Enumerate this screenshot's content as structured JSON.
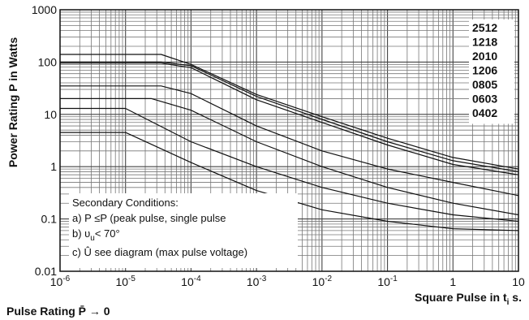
{
  "chart_data": {
    "type": "line",
    "title": "",
    "xlabel": "Square Pulse in t",
    "xlabel_sub": "i",
    "xlabel_suffix": " s.",
    "ylabel": "Power Rating P in Watts",
    "x_scale": "log",
    "y_scale": "log",
    "xlim": [
      1e-06,
      10
    ],
    "ylim": [
      0.01,
      1000
    ],
    "grid": true,
    "legend_position": "top-right",
    "x_tick_labels": [
      {
        "base": "10",
        "exp": "-6"
      },
      {
        "base": "10",
        "exp": "-5"
      },
      {
        "base": "10",
        "exp": "-4"
      },
      {
        "base": "10",
        "exp": "-3"
      },
      {
        "base": "10",
        "exp": "-2"
      },
      {
        "base": "10",
        "exp": "-1"
      },
      {
        "base": "1",
        "exp": ""
      },
      {
        "base": "10",
        "exp": ""
      }
    ],
    "y_tick_labels": [
      "1000",
      "100",
      "10",
      "1",
      "0.1",
      "0.01"
    ],
    "series": [
      {
        "name": "2512",
        "points": [
          [
            1e-06,
            140
          ],
          [
            3.5e-05,
            140
          ],
          [
            0.0001,
            90
          ],
          [
            0.001,
            24
          ],
          [
            0.01,
            9
          ],
          [
            0.1,
            3.5
          ],
          [
            1,
            1.5
          ],
          [
            10,
            0.9
          ]
        ]
      },
      {
        "name": "1218",
        "points": [
          [
            1e-06,
            100
          ],
          [
            3.5e-05,
            100
          ],
          [
            0.0001,
            85
          ],
          [
            0.001,
            22
          ],
          [
            0.01,
            8
          ],
          [
            0.1,
            3
          ],
          [
            1,
            1.3
          ],
          [
            10,
            0.8
          ]
        ]
      },
      {
        "name": "2010",
        "points": [
          [
            1e-06,
            95
          ],
          [
            3.5e-05,
            95
          ],
          [
            0.0001,
            78
          ],
          [
            0.001,
            19
          ],
          [
            0.01,
            7
          ],
          [
            0.1,
            2.6
          ],
          [
            1,
            1.1
          ],
          [
            10,
            0.7
          ]
        ]
      },
      {
        "name": "1206",
        "points": [
          [
            1e-06,
            35
          ],
          [
            3.5e-05,
            35
          ],
          [
            0.0001,
            25
          ],
          [
            0.001,
            6
          ],
          [
            0.01,
            2
          ],
          [
            0.1,
            0.9
          ],
          [
            1,
            0.5
          ],
          [
            10,
            0.28
          ]
        ]
      },
      {
        "name": "0805",
        "points": [
          [
            1e-06,
            20
          ],
          [
            2.5e-05,
            20
          ],
          [
            0.0001,
            12
          ],
          [
            0.001,
            3
          ],
          [
            0.01,
            1
          ],
          [
            0.1,
            0.4
          ],
          [
            1,
            0.2
          ],
          [
            10,
            0.12
          ]
        ]
      },
      {
        "name": "0603",
        "points": [
          [
            1e-06,
            13
          ],
          [
            1e-05,
            13
          ],
          [
            0.0001,
            3
          ],
          [
            0.001,
            1
          ],
          [
            0.01,
            0.4
          ],
          [
            0.1,
            0.2
          ],
          [
            1,
            0.12
          ],
          [
            10,
            0.09
          ]
        ]
      },
      {
        "name": "0402",
        "points": [
          [
            1e-06,
            4.5
          ],
          [
            1e-05,
            4.5
          ],
          [
            0.0001,
            1.2
          ],
          [
            0.001,
            0.35
          ],
          [
            0.01,
            0.15
          ],
          [
            0.1,
            0.09
          ],
          [
            1,
            0.065
          ],
          [
            10,
            0.06
          ]
        ]
      }
    ],
    "notes": {
      "heading": "Secondary Conditions:",
      "line_a": "a) P ≤P (peak pulse, single pulse",
      "line_b_prefix": "b) υ",
      "line_b_sub": "u",
      "line_b_suffix": "< 70°",
      "line_c": "c) Û see diagram (max pulse voltage)"
    },
    "footer": "Pulse Rating P̄ → 0"
  }
}
